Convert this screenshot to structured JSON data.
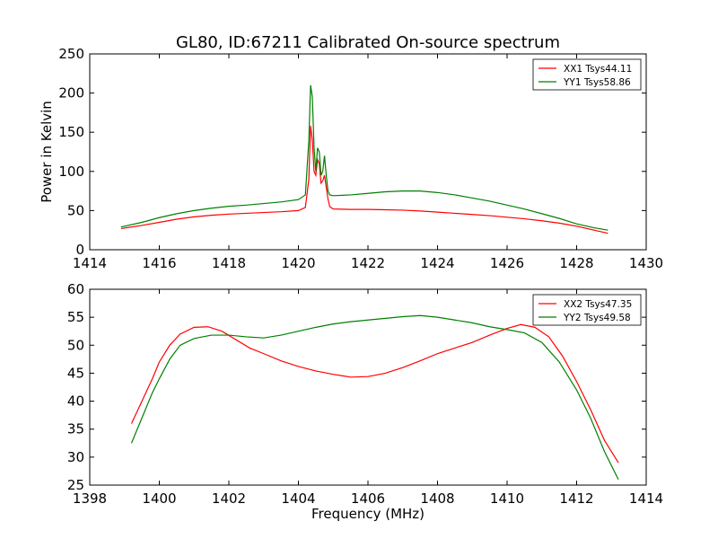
{
  "figure": {
    "title": "GL80, ID:67211 Calibrated On-source spectrum"
  },
  "chart_data": [
    {
      "type": "line",
      "title": "GL80, ID:67211 Calibrated On-source spectrum",
      "xlabel": "",
      "ylabel": "Power in Kelvin",
      "xlim": [
        1414,
        1430
      ],
      "ylim": [
        0,
        250
      ],
      "xticks": [
        "1414",
        "1416",
        "1418",
        "1420",
        "1422",
        "1424",
        "1426",
        "1428",
        "1430"
      ],
      "yticks": [
        "0",
        "50",
        "100",
        "150",
        "200",
        "250"
      ],
      "grid": false,
      "legend": "top-right",
      "series": [
        {
          "name": "XX1 Tsys44.11",
          "color": "#ff0000",
          "points": [
            [
              1414.9,
              27
            ],
            [
              1415.5,
              31
            ],
            [
              1416.0,
              35
            ],
            [
              1416.5,
              39
            ],
            [
              1417.0,
              42
            ],
            [
              1417.5,
              44
            ],
            [
              1418.0,
              45.5
            ],
            [
              1418.5,
              46.5
            ],
            [
              1419.0,
              47.5
            ],
            [
              1419.5,
              48.5
            ],
            [
              1420.0,
              50
            ],
            [
              1420.2,
              54
            ],
            [
              1420.3,
              90
            ],
            [
              1420.35,
              158
            ],
            [
              1420.4,
              140
            ],
            [
              1420.45,
              100
            ],
            [
              1420.5,
              95
            ],
            [
              1420.55,
              115
            ],
            [
              1420.6,
              110
            ],
            [
              1420.65,
              85
            ],
            [
              1420.7,
              88
            ],
            [
              1420.75,
              95
            ],
            [
              1420.8,
              80
            ],
            [
              1420.85,
              65
            ],
            [
              1420.9,
              55
            ],
            [
              1421.0,
              52
            ],
            [
              1421.5,
              51.5
            ],
            [
              1422.0,
              51.5
            ],
            [
              1422.5,
              51
            ],
            [
              1423.0,
              50.5
            ],
            [
              1423.5,
              49.5
            ],
            [
              1424.0,
              48
            ],
            [
              1424.5,
              46.5
            ],
            [
              1425.0,
              45
            ],
            [
              1425.5,
              43.5
            ],
            [
              1426.0,
              41.5
            ],
            [
              1426.5,
              39.5
            ],
            [
              1427.0,
              37
            ],
            [
              1427.5,
              34
            ],
            [
              1428.0,
              30
            ],
            [
              1428.5,
              25
            ],
            [
              1428.9,
              21
            ]
          ]
        },
        {
          "name": "YY1 Tsys58.86",
          "color": "#008000",
          "points": [
            [
              1414.9,
              29
            ],
            [
              1415.5,
              35
            ],
            [
              1416.0,
              41
            ],
            [
              1416.5,
              46
            ],
            [
              1417.0,
              50
            ],
            [
              1417.5,
              53
            ],
            [
              1418.0,
              55.5
            ],
            [
              1418.5,
              57
            ],
            [
              1419.0,
              59
            ],
            [
              1419.5,
              61
            ],
            [
              1420.0,
              64
            ],
            [
              1420.2,
              70
            ],
            [
              1420.3,
              140
            ],
            [
              1420.35,
              210
            ],
            [
              1420.4,
              195
            ],
            [
              1420.45,
              130
            ],
            [
              1420.5,
              100
            ],
            [
              1420.55,
              130
            ],
            [
              1420.6,
              125
            ],
            [
              1420.65,
              95
            ],
            [
              1420.7,
              100
            ],
            [
              1420.75,
              120
            ],
            [
              1420.8,
              95
            ],
            [
              1420.85,
              75
            ],
            [
              1420.9,
              70
            ],
            [
              1421.0,
              69
            ],
            [
              1421.5,
              70
            ],
            [
              1422.0,
              72
            ],
            [
              1422.5,
              74
            ],
            [
              1423.0,
              75
            ],
            [
              1423.5,
              75
            ],
            [
              1424.0,
              73
            ],
            [
              1424.5,
              70
            ],
            [
              1425.0,
              66
            ],
            [
              1425.5,
              62
            ],
            [
              1426.0,
              57
            ],
            [
              1426.5,
              52
            ],
            [
              1427.0,
              46
            ],
            [
              1427.5,
              40
            ],
            [
              1428.0,
              33
            ],
            [
              1428.5,
              28
            ],
            [
              1428.9,
              25
            ]
          ]
        }
      ]
    },
    {
      "type": "line",
      "title": "",
      "xlabel": "Frequency (MHz)",
      "ylabel": "",
      "xlim": [
        1398,
        1414
      ],
      "ylim": [
        25,
        60
      ],
      "xticks": [
        "1398",
        "1400",
        "1402",
        "1404",
        "1406",
        "1408",
        "1410",
        "1412",
        "1414"
      ],
      "yticks": [
        "25",
        "30",
        "35",
        "40",
        "45",
        "50",
        "55",
        "60"
      ],
      "grid": false,
      "legend": "top-right",
      "series": [
        {
          "name": "XX2 Tsys47.35",
          "color": "#ff0000",
          "points": [
            [
              1399.2,
              36
            ],
            [
              1399.5,
              40
            ],
            [
              1399.8,
              44
            ],
            [
              1400.0,
              47
            ],
            [
              1400.3,
              50
            ],
            [
              1400.6,
              52
            ],
            [
              1401.0,
              53.2
            ],
            [
              1401.4,
              53.3
            ],
            [
              1401.8,
              52.5
            ],
            [
              1402.2,
              51
            ],
            [
              1402.6,
              49.5
            ],
            [
              1403.0,
              48.5
            ],
            [
              1403.5,
              47.2
            ],
            [
              1404.0,
              46.2
            ],
            [
              1404.5,
              45.4
            ],
            [
              1405.0,
              44.8
            ],
            [
              1405.5,
              44.3
            ],
            [
              1406.0,
              44.4
            ],
            [
              1406.5,
              45
            ],
            [
              1407.0,
              46
            ],
            [
              1407.5,
              47.2
            ],
            [
              1408.0,
              48.5
            ],
            [
              1408.5,
              49.5
            ],
            [
              1409.0,
              50.5
            ],
            [
              1409.5,
              51.8
            ],
            [
              1410.0,
              53
            ],
            [
              1410.4,
              53.7
            ],
            [
              1410.8,
              53.2
            ],
            [
              1411.2,
              51.5
            ],
            [
              1411.6,
              48
            ],
            [
              1412.0,
              43.5
            ],
            [
              1412.4,
              38.5
            ],
            [
              1412.8,
              33
            ],
            [
              1413.2,
              29
            ]
          ]
        },
        {
          "name": "YY2 Tsys49.58",
          "color": "#008000",
          "points": [
            [
              1399.2,
              32.5
            ],
            [
              1399.5,
              37
            ],
            [
              1399.8,
              41.5
            ],
            [
              1400.0,
              44
            ],
            [
              1400.3,
              47.5
            ],
            [
              1400.6,
              50
            ],
            [
              1401.0,
              51.2
            ],
            [
              1401.5,
              51.8
            ],
            [
              1402.0,
              51.8
            ],
            [
              1402.5,
              51.5
            ],
            [
              1403.0,
              51.3
            ],
            [
              1403.5,
              51.8
            ],
            [
              1404.0,
              52.5
            ],
            [
              1404.5,
              53.2
            ],
            [
              1405.0,
              53.8
            ],
            [
              1405.5,
              54.2
            ],
            [
              1406.0,
              54.5
            ],
            [
              1406.5,
              54.8
            ],
            [
              1407.0,
              55.1
            ],
            [
              1407.5,
              55.3
            ],
            [
              1408.0,
              55
            ],
            [
              1408.5,
              54.5
            ],
            [
              1409.0,
              54
            ],
            [
              1409.5,
              53.3
            ],
            [
              1410.0,
              52.8
            ],
            [
              1410.5,
              52.2
            ],
            [
              1411.0,
              50.5
            ],
            [
              1411.5,
              47
            ],
            [
              1412.0,
              42
            ],
            [
              1412.4,
              37
            ],
            [
              1412.8,
              31
            ],
            [
              1413.2,
              26
            ]
          ]
        }
      ]
    }
  ]
}
